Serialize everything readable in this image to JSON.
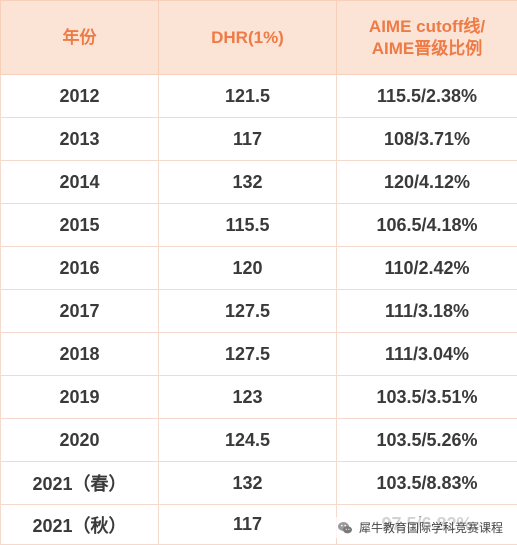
{
  "table": {
    "headers": [
      "年份",
      "DHR(1%)",
      "AIME cutoff线/\nAIME晋级比例"
    ],
    "rows": [
      [
        "2012",
        "121.5",
        "115.5/2.38%"
      ],
      [
        "2013",
        "117",
        "108/3.71%"
      ],
      [
        "2014",
        "132",
        "120/4.12%"
      ],
      [
        "2015",
        "115.5",
        "106.5/4.18%"
      ],
      [
        "2016",
        "120",
        "110/2.42%"
      ],
      [
        "2017",
        "127.5",
        "111/3.18%"
      ],
      [
        "2018",
        "127.5",
        "111/3.04%"
      ],
      [
        "2019",
        "123",
        "103.5/3.51%"
      ],
      [
        "2020",
        "124.5",
        "103.5/5.26%"
      ],
      [
        "2021（春）",
        "132",
        "103.5/8.83%"
      ],
      [
        "2021（秋）",
        "117",
        "97.5/6.82%"
      ]
    ]
  },
  "watermark": {
    "text": "犀牛教育国际学科竞赛课程",
    "icon": "wechat-icon"
  },
  "colors": {
    "header_bg": "#fbe3d6",
    "header_text": "#ee7b45",
    "border": "#f4d9cc"
  }
}
